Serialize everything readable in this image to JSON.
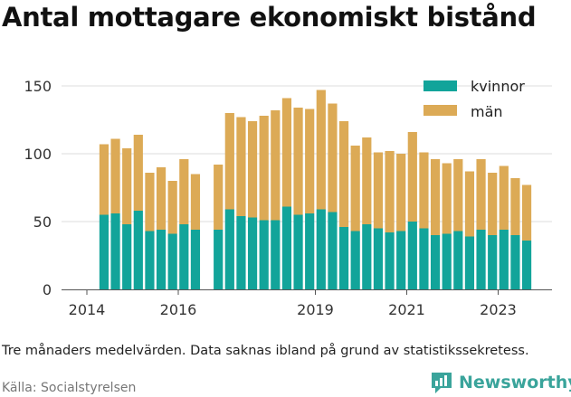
{
  "title": "Antal mottagare ekonomiskt bistånd",
  "caption": "Tre månaders medelvärden. Data saknas ibland på grund av statistikssekretess.",
  "source": "Källa: Socialstyrelsen",
  "brand": {
    "name": "Newsworthy",
    "icon": "newsworthy-logo-icon"
  },
  "colors": {
    "kvinnor": "#12a49a",
    "man": "#dcaa56",
    "grid": "#dddddd",
    "axis": "#555555"
  },
  "chart_data": {
    "type": "bar",
    "stacked": true,
    "x_ticks": [
      "2014",
      "2016",
      "2019",
      "2021",
      "2023"
    ],
    "ylim": [
      0,
      160
    ],
    "y_ticks": [
      0,
      50,
      100,
      150
    ],
    "grid": true,
    "legend_position": "top-right",
    "categories": [
      "2014 Q2",
      "2014 Q3",
      "2014 Q4",
      "2015 Q1",
      "2015 Q2",
      "2015 Q3",
      "2015 Q4",
      "2016 Q1",
      "2016 Q2",
      "2016 Q3",
      "2016 Q4",
      "2017 Q1",
      "2017 Q2",
      "2017 Q3",
      "2017 Q4",
      "2018 Q1",
      "2018 Q2",
      "2018 Q3",
      "2018 Q4",
      "2019 Q1",
      "2019 Q2",
      "2019 Q3",
      "2019 Q4",
      "2020 Q1",
      "2020 Q2",
      "2020 Q3",
      "2020 Q4",
      "2021 Q1",
      "2021 Q2",
      "2021 Q3",
      "2021 Q4",
      "2022 Q1",
      "2022 Q2",
      "2022 Q3",
      "2022 Q4",
      "2023 Q1",
      "2023 Q2",
      "2023 Q3"
    ],
    "series": [
      {
        "name": "kvinnor",
        "values": [
          55,
          56,
          48,
          58,
          43,
          44,
          41,
          48,
          44,
          null,
          44,
          59,
          54,
          53,
          51,
          51,
          61,
          55,
          56,
          59,
          57,
          46,
          43,
          48,
          45,
          42,
          43,
          50,
          45,
          40,
          41,
          43,
          39,
          44,
          40,
          44,
          40,
          36
        ]
      },
      {
        "name": "män",
        "values": [
          52,
          55,
          56,
          56,
          43,
          46,
          39,
          48,
          41,
          null,
          48,
          71,
          73,
          71,
          77,
          81,
          80,
          79,
          77,
          88,
          80,
          78,
          63,
          64,
          56,
          60,
          57,
          66,
          56,
          56,
          52,
          53,
          48,
          52,
          46,
          47,
          42,
          41
        ]
      }
    ]
  }
}
